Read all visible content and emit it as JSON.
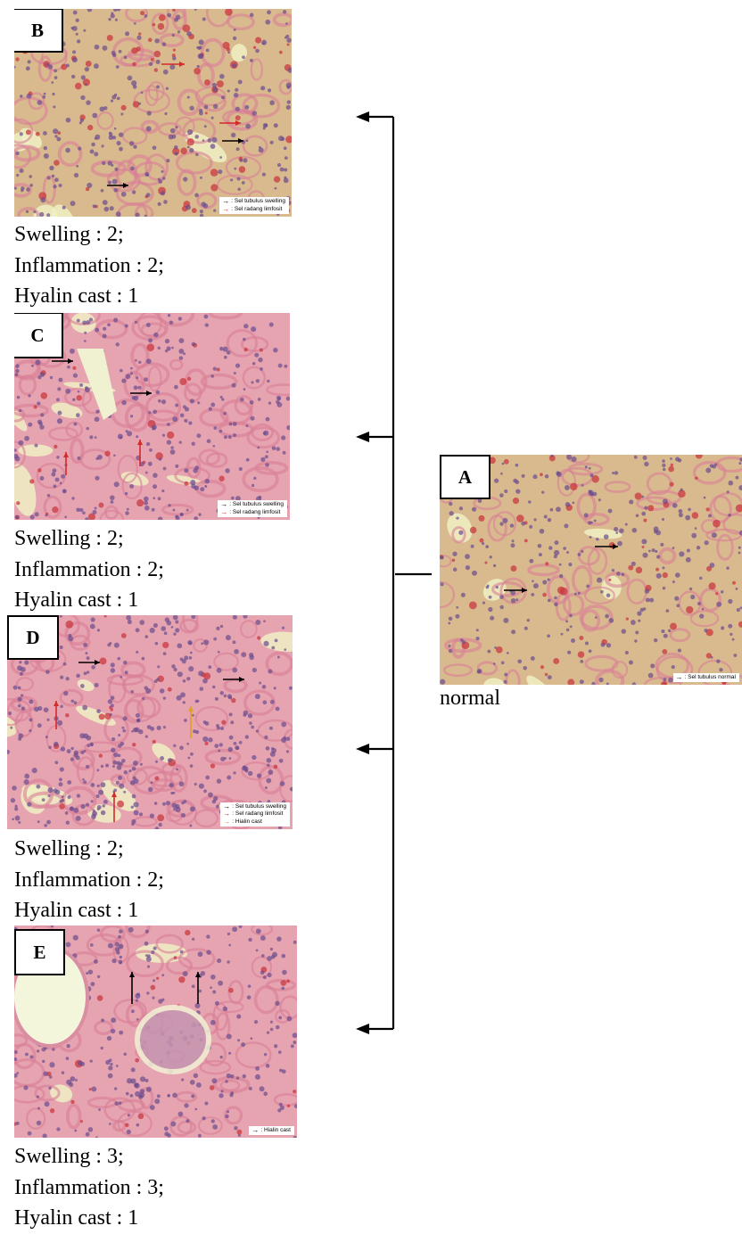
{
  "figure": {
    "colors": {
      "connector": "#000000",
      "legend_black": "#000000",
      "legend_red": "#d42a2a",
      "legend_yellow": "#e0a020",
      "tissue_pink": "#e8a5b3",
      "tissue_lumen": "#ecefc4",
      "nucleus": "#6a4c8e",
      "rbc": "#c9383f"
    },
    "panels": [
      {
        "id": "A",
        "letter": "A",
        "legend": [
          {
            "color_key": "legend_black",
            "text": ": Sel tubulus normal"
          }
        ],
        "caption": [
          "normal"
        ]
      },
      {
        "id": "B",
        "letter": "B",
        "legend": [
          {
            "color_key": "legend_black",
            "text": ": Sel tubulus swelling"
          },
          {
            "color_key": "legend_red",
            "text": ": Sel radang limfosit"
          }
        ],
        "caption": [
          "Swelling : 2;",
          "Inflammation : 2;",
          "Hyalin cast : 1"
        ]
      },
      {
        "id": "C",
        "letter": "C",
        "legend": [
          {
            "color_key": "legend_black",
            "text": ": Sel tubulus swelling"
          },
          {
            "color_key": "legend_red",
            "text": ": Sel radang limfosit"
          }
        ],
        "caption": [
          "Swelling : 2;",
          "Inflammation : 2;",
          "Hyalin cast : 1"
        ]
      },
      {
        "id": "D",
        "letter": "D",
        "legend": [
          {
            "color_key": "legend_black",
            "text": ": Sel tubulus swelling"
          },
          {
            "color_key": "legend_red",
            "text": ": Sel radang limfosit"
          },
          {
            "color_key": "legend_yellow",
            "text": ": Hialin cast"
          }
        ],
        "caption": [
          "Swelling : 2;",
          "Inflammation : 2;",
          "Hyalin cast : 1"
        ]
      },
      {
        "id": "E",
        "letter": "E",
        "legend": [
          {
            "color_key": "legend_black",
            "text": ": Hialin cast"
          }
        ],
        "caption": [
          "Swelling : 3;",
          "Inflammation : 3;",
          "Hyalin cast : 1"
        ]
      }
    ]
  }
}
